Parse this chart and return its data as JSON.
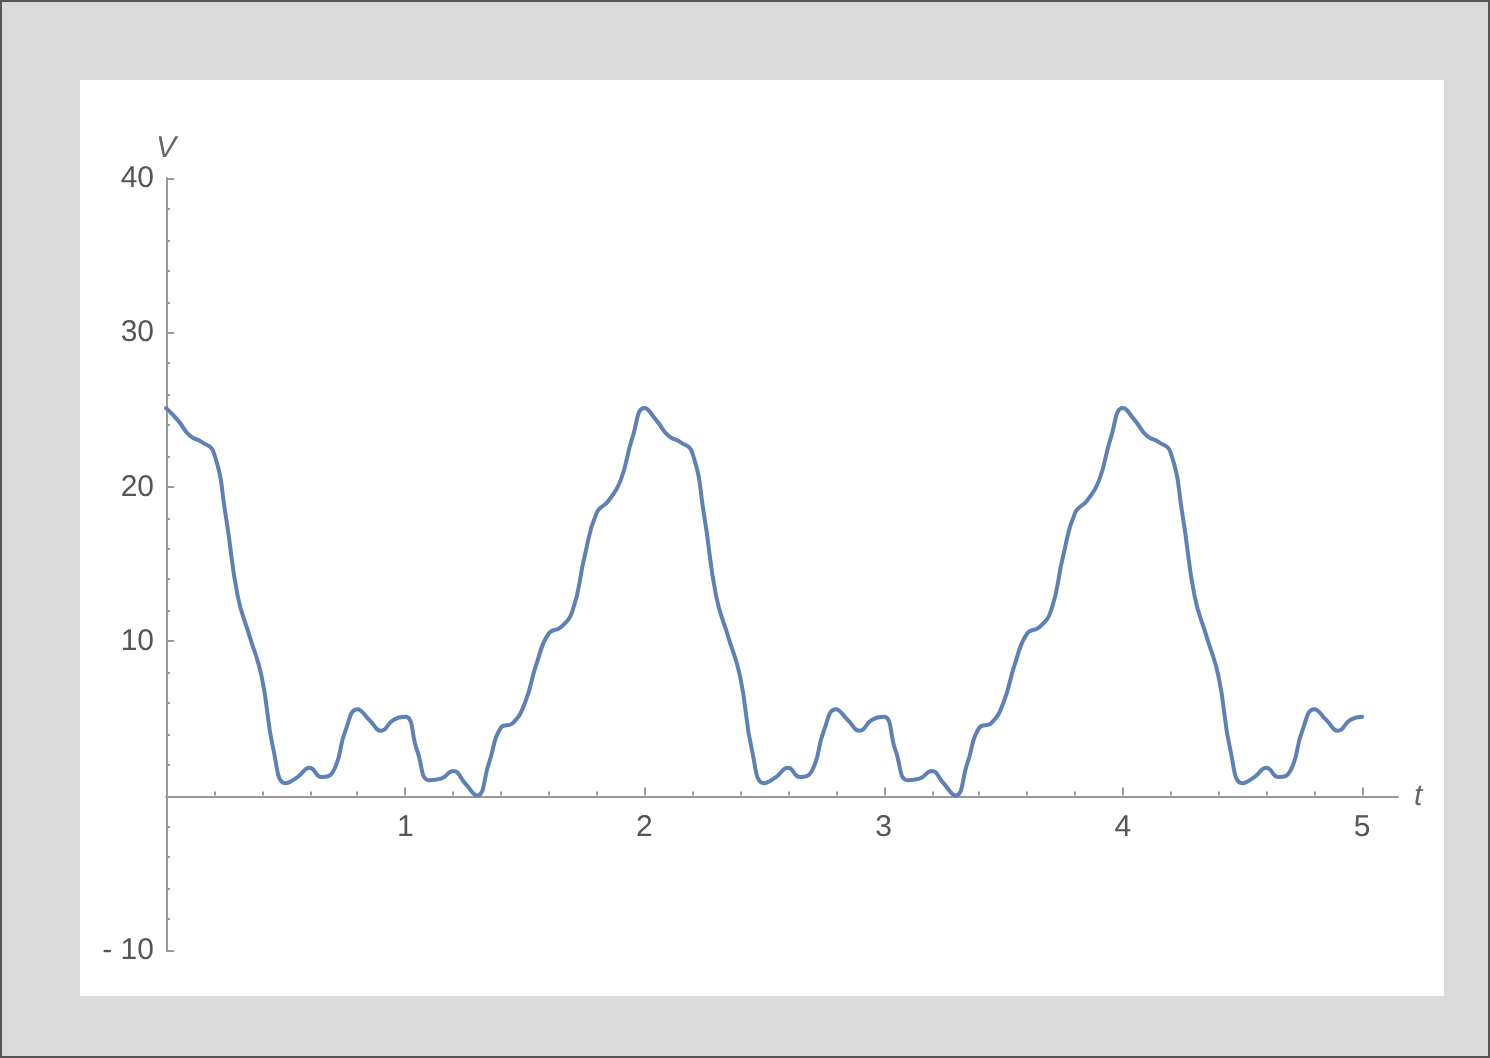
{
  "chart_data": {
    "type": "line",
    "xlabel": "t",
    "ylabel": "V",
    "x": [
      0,
      0.05,
      0.1,
      0.15,
      0.2,
      0.25,
      0.3,
      0.35,
      0.4,
      0.45,
      0.5,
      0.55,
      0.6,
      0.65,
      0.7,
      0.75,
      0.8,
      0.85,
      0.9,
      0.95,
      1,
      1.05,
      1.1,
      1.15,
      1.2,
      1.25,
      1.3,
      1.35,
      1.4,
      1.45,
      1.5,
      1.55,
      1.6,
      1.65,
      1.7,
      1.75,
      1.8,
      1.85,
      1.9,
      1.95,
      2,
      2.05,
      2.1,
      2.15,
      2.2,
      2.25,
      2.3,
      2.35,
      2.4,
      2.45,
      2.5,
      2.55,
      2.6,
      2.65,
      2.7,
      2.75,
      2.8,
      2.85,
      2.9,
      2.95,
      3,
      3.05,
      3.1,
      3.15,
      3.2,
      3.25,
      3.3,
      3.35,
      3.4,
      3.45,
      3.5,
      3.55,
      3.6,
      3.65,
      3.7,
      3.75,
      3.8,
      3.85,
      3.9,
      3.95,
      4,
      4.05,
      4.1,
      4.15,
      4.2,
      4.25,
      4.3,
      4.35,
      4.4,
      4.45,
      4.5,
      4.55,
      4.6,
      4.65,
      4.7,
      4.75,
      4.8,
      4.85,
      4.9,
      4.95,
      5
    ],
    "series": [
      {
        "color": "#5e81b5",
        "values": [
          25.1,
          24.3,
          23.3,
          22.9,
          22.2,
          18.1,
          12.9,
          10.3,
          7.7,
          2.9,
          0.8,
          1.2,
          1.8,
          1.2,
          1.6,
          4.2,
          5.6,
          4.9,
          4.2,
          4.9,
          5.1,
          2.9,
          1.0,
          1.1,
          1.6,
          0.8,
          0,
          2.1,
          4.4,
          4.7,
          6.0,
          8.6,
          10.5,
          10.9,
          12.0,
          15.5,
          18.3,
          19.1,
          20.4,
          23.2,
          25.1,
          24.3,
          23.3,
          22.9,
          22.2,
          18.1,
          12.9,
          10.3,
          7.7,
          2.9,
          0.8,
          1.2,
          1.8,
          1.2,
          1.6,
          4.2,
          5.6,
          4.9,
          4.2,
          4.9,
          5.1,
          2.9,
          1.0,
          1.1,
          1.6,
          0.8,
          0,
          2.1,
          4.4,
          4.7,
          6.0,
          8.6,
          10.5,
          10.9,
          12.0,
          15.5,
          18.3,
          19.1,
          20.4,
          23.2,
          25.1,
          24.3,
          23.3,
          22.9,
          22.2,
          18.1,
          12.9,
          10.3,
          7.7,
          2.9,
          0.8,
          1.2,
          1.8,
          1.2,
          1.6,
          4.2,
          5.6,
          4.9,
          4.2,
          4.9,
          5.1
        ]
      }
    ],
    "xlim": [
      0,
      5.15
    ],
    "ylim": [
      -10,
      40
    ],
    "xticks": [
      1,
      2,
      3,
      4,
      5
    ],
    "yticks": [
      {
        "value": -10,
        "label": "- 10"
      },
      {
        "value": 0,
        "label": null
      },
      10,
      20,
      30,
      40
    ],
    "marker": "none",
    "line_style": "solid"
  }
}
